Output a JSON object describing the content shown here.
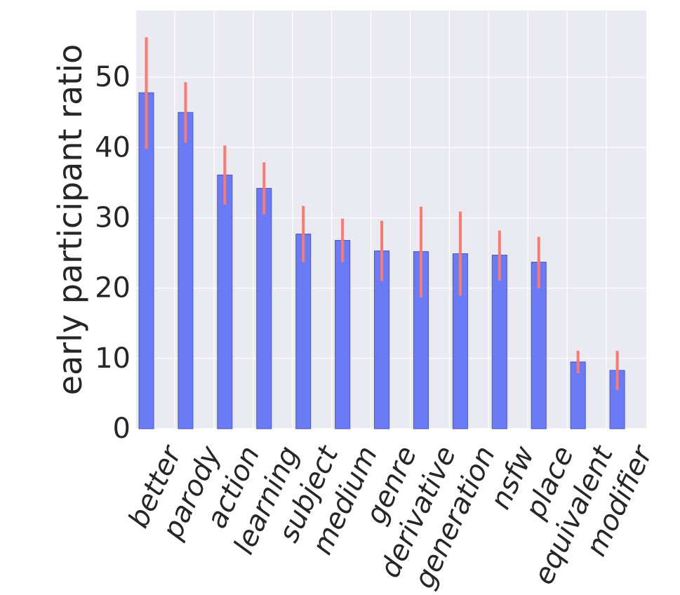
{
  "chart_data": {
    "type": "bar",
    "title": "",
    "xlabel": "",
    "ylabel": "early participant ratio",
    "categories": [
      "better",
      "parody",
      "action",
      "learning",
      "subject",
      "medium",
      "genre",
      "derivative",
      "generation",
      "nsfw",
      "place",
      "equivalent",
      "modifier"
    ],
    "values": [
      47.8,
      45.0,
      36.1,
      34.2,
      27.7,
      26.8,
      25.3,
      25.2,
      24.9,
      24.7,
      23.7,
      9.5,
      8.3
    ],
    "error_low": [
      39.8,
      40.7,
      31.9,
      30.5,
      23.7,
      23.7,
      21.0,
      18.7,
      18.9,
      21.1,
      20.0,
      7.9,
      5.5
    ],
    "error_high": [
      55.7,
      49.3,
      40.3,
      37.9,
      31.7,
      29.9,
      29.6,
      31.6,
      30.9,
      28.2,
      27.3,
      11.1,
      11.1
    ],
    "ylim": [
      0,
      59.5
    ],
    "yticks": [
      0,
      10,
      20,
      30,
      40,
      50
    ],
    "grid": true,
    "colors": {
      "bar": "#6b7bf5",
      "bar_edge": "#4a56c0",
      "error": "#fa7b6f",
      "background": "#eaeaf2",
      "grid": "#ffffff",
      "text": "#262626"
    }
  }
}
